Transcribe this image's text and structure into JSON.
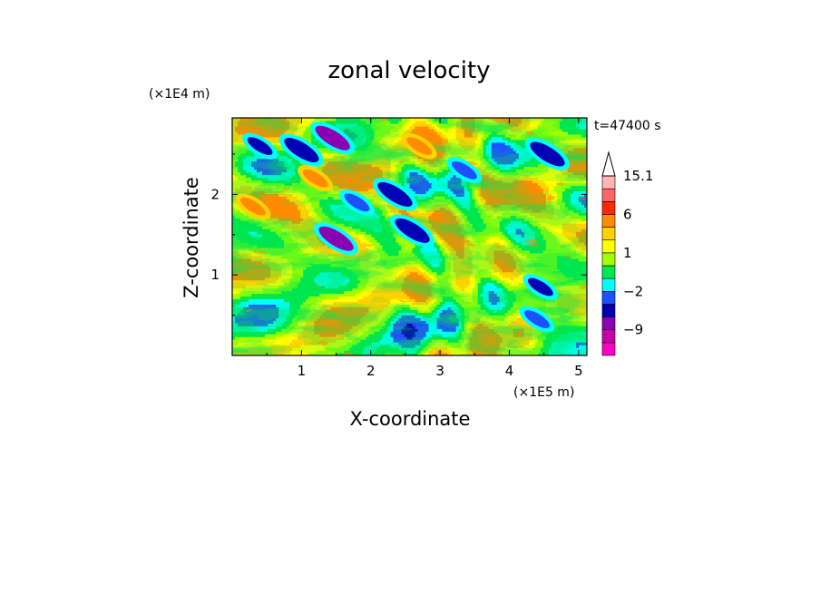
{
  "chart_data": {
    "type": "heatmap",
    "title": "zonal velocity",
    "xlabel": "X-coordinate",
    "ylabel": "Z-coordinate",
    "x_scale_label": "(×1E5 m)",
    "y_scale_label": "(×1E4 m)",
    "time_label": "t=47400 s",
    "xlim": [
      0,
      5.12
    ],
    "ylim": [
      0,
      2.95
    ],
    "x_ticks": [
      1,
      2,
      3,
      4,
      5
    ],
    "y_ticks": [
      1,
      2
    ],
    "colorbar": {
      "levels": [
        {
          "lo": -15,
          "hi": -12,
          "color": "#ff00c8"
        },
        {
          "lo": -12,
          "hi": -9,
          "color": "#c800aa"
        },
        {
          "lo": -9,
          "hi": -6,
          "color": "#8c00b4"
        },
        {
          "lo": -6,
          "hi": -4,
          "color": "#0000b4"
        },
        {
          "lo": -4,
          "hi": -2,
          "color": "#1e50ff"
        },
        {
          "lo": -2,
          "hi": -1,
          "color": "#00ffff"
        },
        {
          "lo": -1,
          "hi": 0,
          "color": "#00e650"
        },
        {
          "lo": 0,
          "hi": 1,
          "color": "#a0ff00"
        },
        {
          "lo": 1,
          "hi": 2,
          "color": "#ffff00"
        },
        {
          "lo": 2,
          "hi": 3,
          "color": "#ffd200"
        },
        {
          "lo": 3,
          "hi": 6,
          "color": "#ff8c00"
        },
        {
          "lo": 6,
          "hi": 9,
          "color": "#ff2800"
        },
        {
          "lo": 9,
          "hi": 12,
          "color": "#ff6464"
        },
        {
          "lo": 12,
          "hi": 15.1,
          "color": "#ffb4b4"
        }
      ],
      "tick_labels": [
        "15.1",
        "6",
        "1",
        "−2",
        "−9"
      ],
      "tick_values": [
        15.1,
        6,
        1,
        -2,
        -9
      ],
      "extend": "max"
    },
    "features": [
      {
        "x": 1.5,
        "z": 1.45,
        "value": -8
      },
      {
        "x": 1.45,
        "z": 2.7,
        "value": -7
      },
      {
        "x": 2.35,
        "z": 2.0,
        "value": -6
      },
      {
        "x": 2.6,
        "z": 1.55,
        "value": -6
      },
      {
        "x": 1.0,
        "z": 2.55,
        "value": -6
      },
      {
        "x": 0.4,
        "z": 2.6,
        "value": -5
      },
      {
        "x": 4.55,
        "z": 2.5,
        "value": -6
      },
      {
        "x": 4.45,
        "z": 0.85,
        "value": -5
      },
      {
        "x": 4.4,
        "z": 0.45,
        "value": -4
      },
      {
        "x": 3.35,
        "z": 2.3,
        "value": -3
      },
      {
        "x": 1.2,
        "z": 2.2,
        "value": 3
      },
      {
        "x": 0.3,
        "z": 1.85,
        "value": 4
      },
      {
        "x": 2.7,
        "z": 2.6,
        "value": 3
      },
      {
        "x": 1.8,
        "z": 1.9,
        "value": -3
      }
    ]
  }
}
